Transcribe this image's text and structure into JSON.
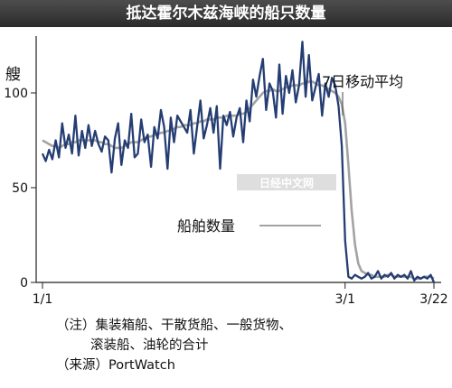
{
  "chart_data": {
    "type": "line",
    "title": "抵达霍尔木兹海峡的船只数量",
    "ylabel": "艘",
    "ylim": [
      0,
      130
    ],
    "yticks": [
      0,
      50,
      100
    ],
    "xticks": [
      "1/1",
      "3/1",
      "3/22"
    ],
    "grid": false,
    "series": [
      {
        "name": "船舶数量",
        "color": "#243d73",
        "values": [
          68,
          64,
          70,
          65,
          75,
          66,
          84,
          71,
          78,
          68,
          88,
          67,
          80,
          71,
          83,
          72,
          80,
          73,
          69,
          77,
          75,
          58,
          76,
          84,
          62,
          75,
          71,
          89,
          66,
          68,
          86,
          74,
          78,
          61,
          82,
          76,
          91,
          82,
          60,
          87,
          74,
          88,
          85,
          82,
          79,
          91,
          68,
          82,
          96,
          76,
          83,
          92,
          79,
          93,
          60,
          88,
          83,
          90,
          77,
          87,
          92,
          74,
          96,
          85,
          107,
          98,
          109,
          118,
          91,
          105,
          101,
          87,
          115,
          89,
          109,
          100,
          112,
          95,
          104,
          127,
          98,
          120,
          96,
          103,
          110,
          88,
          105,
          98,
          108,
          104,
          93,
          72,
          22,
          3,
          2,
          4,
          3,
          2,
          3,
          5,
          2,
          3,
          6,
          2,
          4,
          3,
          5,
          2,
          4,
          3,
          4,
          2,
          6,
          1,
          3,
          2,
          3,
          2,
          4,
          0
        ]
      },
      {
        "name": "7日移动平均",
        "color": "#a3a3a3",
        "values": [
          75,
          74,
          73,
          72,
          72,
          71,
          72,
          73,
          73,
          74,
          74,
          75,
          75,
          75,
          75,
          75,
          75,
          74,
          74,
          73,
          73,
          72,
          71,
          71,
          71,
          72,
          73,
          74,
          74,
          74,
          75,
          76,
          77,
          77,
          78,
          78,
          79,
          79,
          80,
          80,
          81,
          82,
          82,
          83,
          83,
          83,
          84,
          84,
          85,
          85,
          86,
          86,
          86,
          87,
          87,
          87,
          88,
          88,
          88,
          88,
          89,
          89,
          90,
          92,
          94,
          96,
          98,
          100,
          101,
          101,
          102,
          101,
          101,
          102,
          103,
          103,
          104,
          104,
          104,
          105,
          105,
          106,
          106,
          105,
          104,
          104,
          103,
          102,
          101,
          100,
          98,
          94,
          84,
          62,
          38,
          20,
          10,
          6,
          5,
          4,
          4,
          3,
          3,
          3,
          3,
          4,
          4,
          3,
          3,
          3,
          3,
          3,
          3,
          2,
          2,
          2,
          3,
          3,
          3,
          2
        ]
      }
    ],
    "annotations": [
      "7日移动平均",
      "船舶数量"
    ]
  },
  "watermark": "日经中文网",
  "notes": {
    "line1": "（注）集装箱船、干散货船、一般货物、",
    "line2": "滚装船、油轮的合计",
    "source": "（来源）PortWatch"
  }
}
